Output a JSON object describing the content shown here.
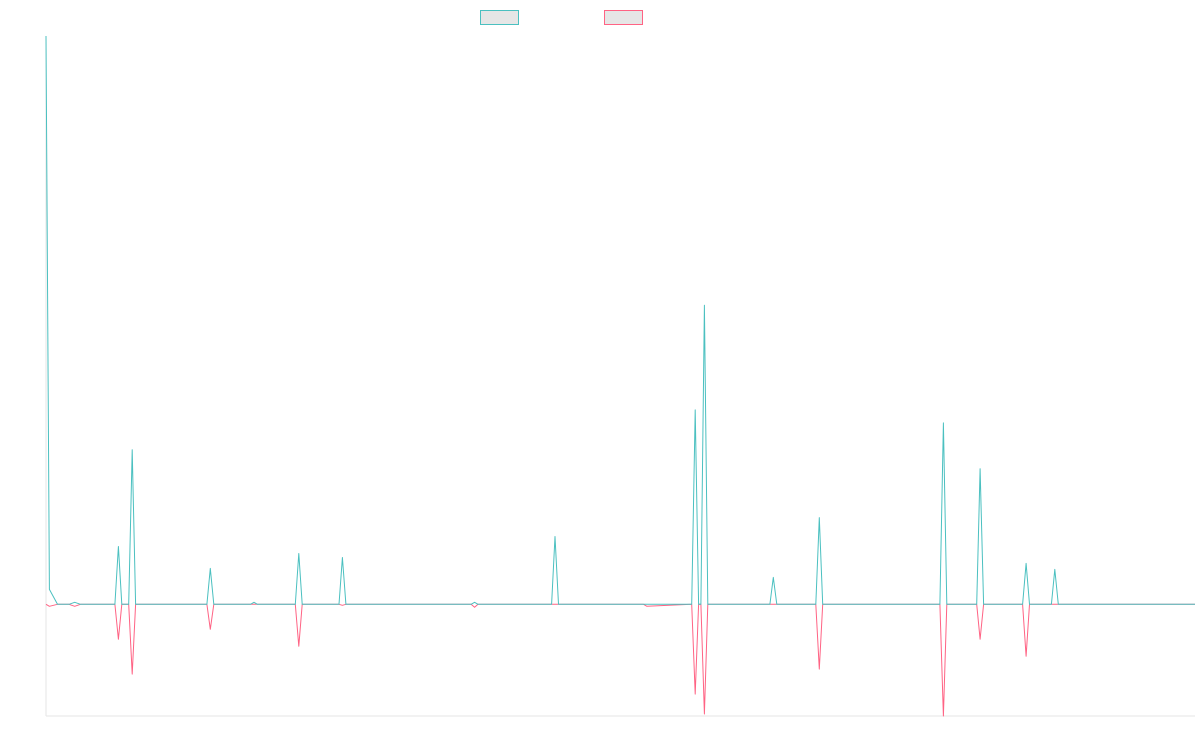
{
  "chart_data": {
    "type": "line",
    "title": "",
    "xlabel": "",
    "ylabel": "",
    "ylim": [
      -112,
      570
    ],
    "grid": false,
    "legend_placement": "top-center",
    "series": [
      {
        "name": "",
        "color": "#4bc0c0",
        "points": [
          [
            0,
            570
          ],
          [
            0.3,
            15
          ],
          [
            1,
            0
          ],
          [
            2,
            0
          ],
          [
            2.5,
            2
          ],
          [
            3,
            0
          ],
          [
            3.5,
            0
          ],
          [
            4,
            0
          ],
          [
            6,
            0
          ],
          [
            6.3,
            58
          ],
          [
            6.6,
            0
          ],
          [
            7.2,
            0
          ],
          [
            7.5,
            155
          ],
          [
            7.8,
            0
          ],
          [
            14,
            0
          ],
          [
            14.3,
            36
          ],
          [
            14.6,
            0
          ],
          [
            17.8,
            0
          ],
          [
            18.1,
            2
          ],
          [
            18.4,
            0
          ],
          [
            21.7,
            0
          ],
          [
            22,
            51
          ],
          [
            22.3,
            0
          ],
          [
            25.5,
            0
          ],
          [
            25.8,
            47
          ],
          [
            26.1,
            0
          ],
          [
            37,
            0
          ],
          [
            37.3,
            2
          ],
          [
            37.6,
            0
          ],
          [
            44,
            0
          ],
          [
            44.3,
            68
          ],
          [
            44.6,
            0
          ],
          [
            52,
            0
          ],
          [
            52.3,
            0
          ],
          [
            56.2,
            0
          ],
          [
            56.5,
            195
          ],
          [
            56.8,
            0
          ],
          [
            57,
            0
          ],
          [
            57.3,
            300
          ],
          [
            57.6,
            0
          ],
          [
            63,
            0
          ],
          [
            63.3,
            27
          ],
          [
            63.6,
            0
          ],
          [
            67,
            0
          ],
          [
            67.3,
            87
          ],
          [
            67.6,
            0
          ],
          [
            77.8,
            0
          ],
          [
            78.1,
            182
          ],
          [
            78.4,
            0
          ],
          [
            81,
            0
          ],
          [
            81.3,
            136
          ],
          [
            81.6,
            0
          ],
          [
            85,
            0
          ],
          [
            85.3,
            41
          ],
          [
            85.6,
            0
          ],
          [
            87.5,
            0
          ],
          [
            87.8,
            35
          ],
          [
            88.1,
            0
          ],
          [
            100,
            0
          ]
        ]
      },
      {
        "name": "",
        "color": "#ff6384",
        "points": [
          [
            0,
            0
          ],
          [
            0.3,
            -2
          ],
          [
            1,
            0
          ],
          [
            2,
            0
          ],
          [
            2.5,
            -2
          ],
          [
            3,
            0
          ],
          [
            3.5,
            0
          ],
          [
            4,
            0
          ],
          [
            6,
            0
          ],
          [
            6.3,
            -35
          ],
          [
            6.6,
            0
          ],
          [
            7.2,
            0
          ],
          [
            7.5,
            -70
          ],
          [
            7.8,
            0
          ],
          [
            14,
            0
          ],
          [
            14.3,
            -25
          ],
          [
            14.6,
            0
          ],
          [
            17.8,
            0
          ],
          [
            18.1,
            0
          ],
          [
            18.4,
            0
          ],
          [
            21.7,
            0
          ],
          [
            22,
            -42
          ],
          [
            22.3,
            0
          ],
          [
            25.5,
            0
          ],
          [
            25.8,
            -1
          ],
          [
            26.1,
            0
          ],
          [
            37,
            0
          ],
          [
            37.3,
            -3
          ],
          [
            37.6,
            0
          ],
          [
            44,
            0
          ],
          [
            44.3,
            0
          ],
          [
            44.6,
            0
          ],
          [
            52,
            0
          ],
          [
            52.3,
            -2
          ],
          [
            56.2,
            0
          ],
          [
            56.5,
            -90
          ],
          [
            56.8,
            0
          ],
          [
            57,
            0
          ],
          [
            57.3,
            -110
          ],
          [
            57.6,
            0
          ],
          [
            63,
            0
          ],
          [
            63.3,
            0
          ],
          [
            63.6,
            0
          ],
          [
            67,
            0
          ],
          [
            67.3,
            -65
          ],
          [
            67.6,
            0
          ],
          [
            77.8,
            0
          ],
          [
            78.1,
            -112
          ],
          [
            78.4,
            0
          ],
          [
            81,
            0
          ],
          [
            81.3,
            -35
          ],
          [
            81.6,
            0
          ],
          [
            85,
            0
          ],
          [
            85.3,
            -52
          ],
          [
            85.6,
            0
          ],
          [
            87.5,
            0
          ],
          [
            87.8,
            0
          ],
          [
            88.1,
            0
          ],
          [
            100,
            0
          ]
        ]
      }
    ]
  }
}
